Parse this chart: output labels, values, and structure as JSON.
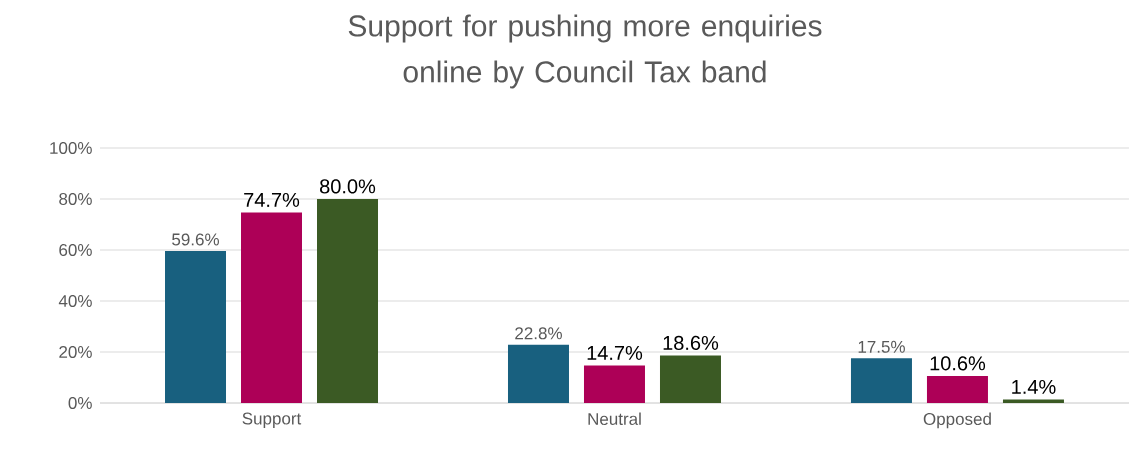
{
  "chart_data": {
    "type": "bar",
    "title": "Support for pushing more enquiries online by Council Tax band",
    "categories": [
      "Support",
      "Neutral",
      "Opposed"
    ],
    "series": [
      {
        "color": "#18607f",
        "values": [
          59.6,
          22.8,
          17.5
        ],
        "value_labels": [
          "59.6%",
          "22.8%",
          "17.5%"
        ]
      },
      {
        "color": "#ad0057",
        "values": [
          74.7,
          14.7,
          10.6
        ],
        "value_labels": [
          "74.7%",
          "14.7%",
          "10.6%"
        ]
      },
      {
        "color": "#3b5a24",
        "values": [
          80.0,
          18.6,
          1.4
        ],
        "value_labels": [
          "80.0%",
          "18.6%",
          "1.4%"
        ]
      }
    ],
    "ylim": [
      0,
      100
    ],
    "yticks": [
      {
        "value": 0,
        "label": "0%"
      },
      {
        "value": 20,
        "label": "20%"
      },
      {
        "value": 40,
        "label": "40%"
      },
      {
        "value": 60,
        "label": "60%"
      },
      {
        "value": 80,
        "label": "80%"
      },
      {
        "value": 100,
        "label": "100%"
      }
    ],
    "grid": "y"
  }
}
